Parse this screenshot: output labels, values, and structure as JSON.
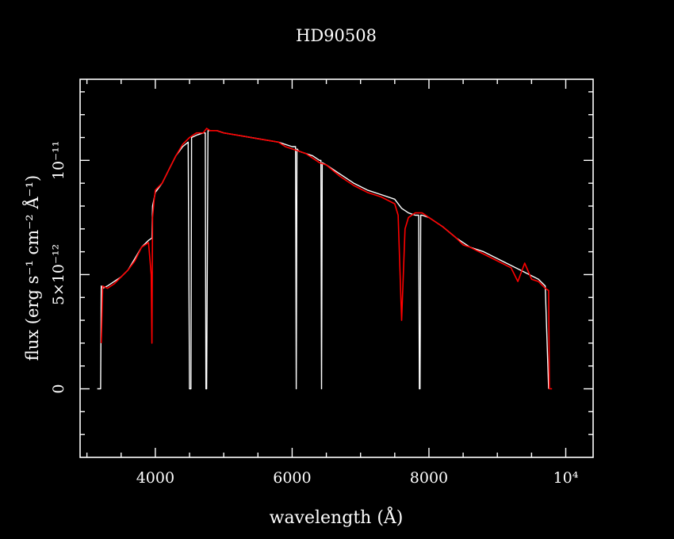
{
  "chart_data": {
    "type": "line",
    "title": "HD90508",
    "xlabel": "wavelength (Å)",
    "ylabel": "flux (erg s⁻¹ cm⁻² Å⁻¹)",
    "xlim": [
      2900,
      10400
    ],
    "ylim": [
      -3e-12,
      1.355e-11
    ],
    "x_ticks": [
      {
        "value": 4000,
        "label": "4000"
      },
      {
        "value": 6000,
        "label": "6000"
      },
      {
        "value": 8000,
        "label": "8000"
      },
      {
        "value": 10000,
        "label": "10⁴"
      }
    ],
    "y_ticks": [
      {
        "value": 0,
        "label": "0"
      },
      {
        "value": 5e-12,
        "label": "5×10⁻¹²"
      },
      {
        "value": 1e-11,
        "label": "10⁻¹¹"
      }
    ],
    "grid": false,
    "colors": {
      "background": "#000000",
      "axes": "#ffffff",
      "reference": "#ffffff",
      "model": "#ff0000"
    },
    "series": [
      {
        "color": "#ffffff",
        "x": [
          3150,
          3200,
          3210,
          3230,
          3300,
          3400,
          3500,
          3600,
          3700,
          3800,
          3900,
          3950,
          3960,
          3980,
          4000,
          4100,
          4200,
          4300,
          4400,
          4480,
          4500,
          4510,
          4520,
          4530,
          4600,
          4700,
          4730,
          4740,
          4750,
          4770,
          4800,
          4900,
          5000,
          5200,
          5400,
          5600,
          5800,
          6000,
          6050,
          6060,
          6070,
          6100,
          6200,
          6300,
          6400,
          6420,
          6430,
          6440,
          6500,
          6700,
          6900,
          7100,
          7300,
          7500,
          7600,
          7700,
          7800,
          7850,
          7860,
          7870,
          7880,
          7900,
          8000,
          8200,
          8400,
          8600,
          8800,
          9000,
          9200,
          9400,
          9600,
          9700,
          9750
        ],
        "y": [
          0,
          0,
          4.5e-12,
          4.4e-12,
          4.5e-12,
          4.7e-12,
          4.9e-12,
          5.2e-12,
          5.7e-12,
          6.2e-12,
          6.5e-12,
          6.6e-12,
          8e-12,
          8.3e-12,
          8.6e-12,
          9e-12,
          9.6e-12,
          1.02e-11,
          1.06e-11,
          1.08e-11,
          0,
          0,
          0,
          1.1e-11,
          1.11e-11,
          1.12e-11,
          1.12e-11,
          0,
          0,
          1.13e-11,
          1.13e-11,
          1.13e-11,
          1.12e-11,
          1.11e-11,
          1.1e-11,
          1.09e-11,
          1.08e-11,
          1.06e-11,
          1.06e-11,
          0,
          1.05e-11,
          1.04e-11,
          1.03e-11,
          1.02e-11,
          1e-11,
          1e-11,
          0,
          9.9e-12,
          9.8e-12,
          9.4e-12,
          9e-12,
          8.7e-12,
          8.5e-12,
          8.3e-12,
          7.9e-12,
          7.7e-12,
          7.6e-12,
          7.6e-12,
          0,
          0,
          7.6e-12,
          7.6e-12,
          7.5e-12,
          7.1e-12,
          6.6e-12,
          6.2e-12,
          6e-12,
          5.7e-12,
          5.4e-12,
          5.1e-12,
          4.8e-12,
          4.5e-12,
          0
        ]
      },
      {
        "color": "#ff0000",
        "x": [
          3210,
          3230,
          3300,
          3400,
          3500,
          3600,
          3700,
          3800,
          3900,
          3940,
          3950,
          3960,
          3980,
          4000,
          4100,
          4200,
          4300,
          4400,
          4500,
          4600,
          4700,
          4750,
          4800,
          4900,
          5000,
          5200,
          5400,
          5600,
          5800,
          5900,
          6000,
          6100,
          6200,
          6300,
          6400,
          6500,
          6700,
          6900,
          7100,
          7300,
          7500,
          7550,
          7600,
          7650,
          7700,
          7800,
          7850,
          7900,
          8000,
          8200,
          8400,
          8500,
          8600,
          8800,
          9000,
          9200,
          9300,
          9400,
          9500,
          9600,
          9700,
          9750,
          9760,
          9800
        ],
        "y": [
          2e-12,
          4.5e-12,
          4.4e-12,
          4.6e-12,
          4.9e-12,
          5.2e-12,
          5.6e-12,
          6.2e-12,
          6.4e-12,
          5e-12,
          2e-12,
          7.5e-12,
          8.2e-12,
          8.7e-12,
          9e-12,
          9.6e-12,
          1.02e-11,
          1.07e-11,
          1.1e-11,
          1.12e-11,
          1.12e-11,
          1.14e-11,
          1.13e-11,
          1.13e-11,
          1.12e-11,
          1.11e-11,
          1.1e-11,
          1.09e-11,
          1.08e-11,
          1.06e-11,
          1.05e-11,
          1.04e-11,
          1.03e-11,
          1.01e-11,
          9.9e-12,
          9.8e-12,
          9.3e-12,
          8.9e-12,
          8.6e-12,
          8.4e-12,
          8.1e-12,
          7.6e-12,
          3e-12,
          7e-12,
          7.5e-12,
          7.7e-12,
          7.7e-12,
          7.7e-12,
          7.5e-12,
          7.1e-12,
          6.6e-12,
          6.3e-12,
          6.2e-12,
          5.9e-12,
          5.6e-12,
          5.3e-12,
          4.7e-12,
          5.5e-12,
          4.8e-12,
          4.7e-12,
          4.4e-12,
          4.3e-12,
          0,
          0
        ]
      }
    ]
  }
}
